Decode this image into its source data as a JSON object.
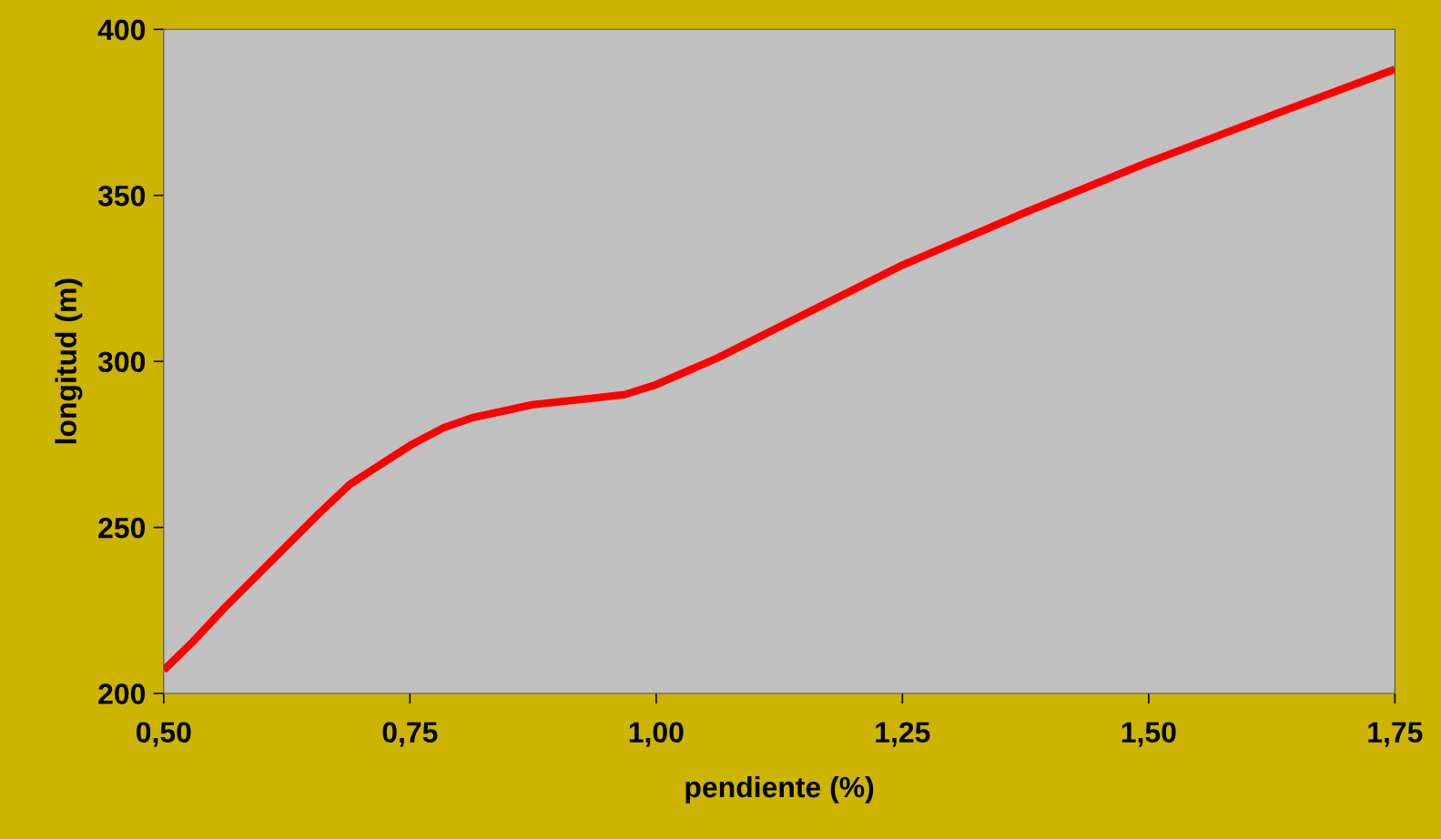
{
  "chart_data": {
    "type": "line",
    "xlabel": "pendiente (%)",
    "ylabel": "longitud (m)",
    "series": [
      {
        "color": "#ff0000",
        "x": [
          0.5,
          0.531,
          0.5625,
          0.657,
          0.689,
          0.752,
          0.784,
          0.813,
          0.844,
          0.875,
          0.9375,
          0.968,
          1.0,
          1.062,
          1.25,
          1.376,
          1.5,
          1.624,
          1.75
        ],
        "values": [
          207,
          216,
          226,
          254,
          263,
          275,
          280,
          283,
          285,
          287,
          289,
          290,
          293,
          301,
          329,
          345,
          360,
          374,
          388
        ]
      }
    ],
    "xlim": [
      0.5,
      1.75
    ],
    "ylim": [
      200,
      400
    ],
    "xticks": [
      {
        "value": 0.5,
        "label": "0,50"
      },
      {
        "value": 0.75,
        "label": "0,75"
      },
      {
        "value": 1.0,
        "label": "1,00"
      },
      {
        "value": 1.25,
        "label": "1,25"
      },
      {
        "value": 1.5,
        "label": "1,50"
      },
      {
        "value": 1.75,
        "label": "1,75"
      }
    ],
    "yticks": [
      200,
      250,
      300,
      350,
      400
    ],
    "grid": false,
    "legend": false,
    "marker": "none",
    "line_style": "solid"
  }
}
